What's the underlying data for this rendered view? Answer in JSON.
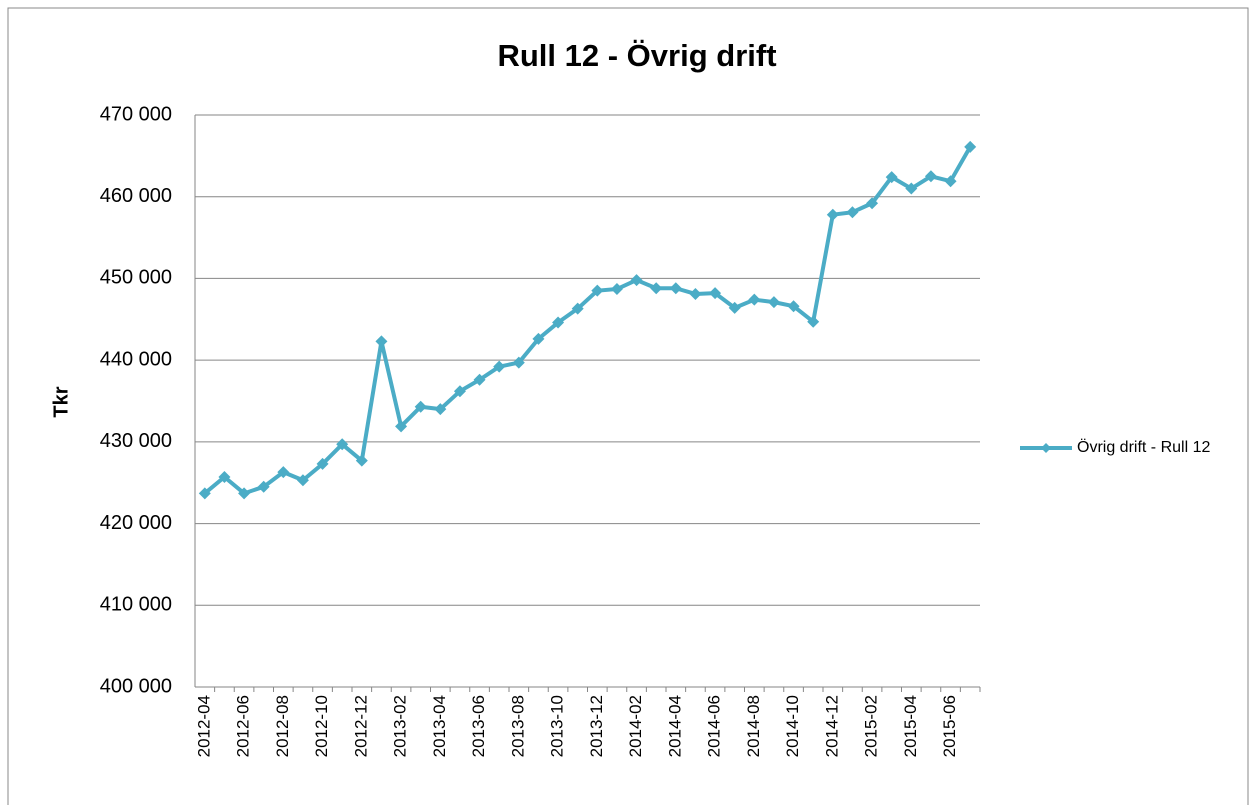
{
  "chart_data": {
    "type": "line",
    "title": "Rull 12 - Övrig drift",
    "y_label": "Tkr",
    "categories": [
      "2012-04",
      null,
      "2012-06",
      null,
      "2012-08",
      null,
      "2012-10",
      null,
      "2012-12",
      null,
      "2013-02",
      null,
      "2013-04",
      null,
      "2013-06",
      null,
      "2013-08",
      null,
      "2013-10",
      null,
      "2013-12",
      null,
      "2014-02",
      null,
      "2014-04",
      null,
      "2014-06",
      null,
      "2014-08",
      null,
      "2014-10",
      null,
      "2014-12",
      null,
      "2015-02",
      null,
      "2015-04",
      null,
      "2015-06",
      null
    ],
    "series": [
      {
        "name": "Övrig drift - Rull 12",
        "color": "#4bacc6",
        "values": [
          423700,
          425700,
          423700,
          424500,
          426300,
          425300,
          427300,
          429700,
          427700,
          442300,
          431900,
          434300,
          434000,
          436200,
          437600,
          439200,
          439700,
          442600,
          444600,
          446300,
          448500,
          448700,
          449800,
          448800,
          448800,
          448100,
          448200,
          446400,
          447400,
          447100,
          446600,
          444700,
          457800,
          458100,
          459200,
          462400,
          461000,
          462500,
          461900,
          466100
        ]
      }
    ],
    "ylim": [
      400000,
      470000
    ],
    "yticks": [
      {
        "value": 400000,
        "label": "400 000"
      },
      {
        "value": 410000,
        "label": "410 000"
      },
      {
        "value": 420000,
        "label": "420 000"
      },
      {
        "value": 430000,
        "label": "430 000"
      },
      {
        "value": 440000,
        "label": "440 000"
      },
      {
        "value": 450000,
        "label": "450 000"
      },
      {
        "value": 460000,
        "label": "460 000"
      },
      {
        "value": 470000,
        "label": "470 000"
      }
    ],
    "grid": true,
    "legend": "right"
  }
}
